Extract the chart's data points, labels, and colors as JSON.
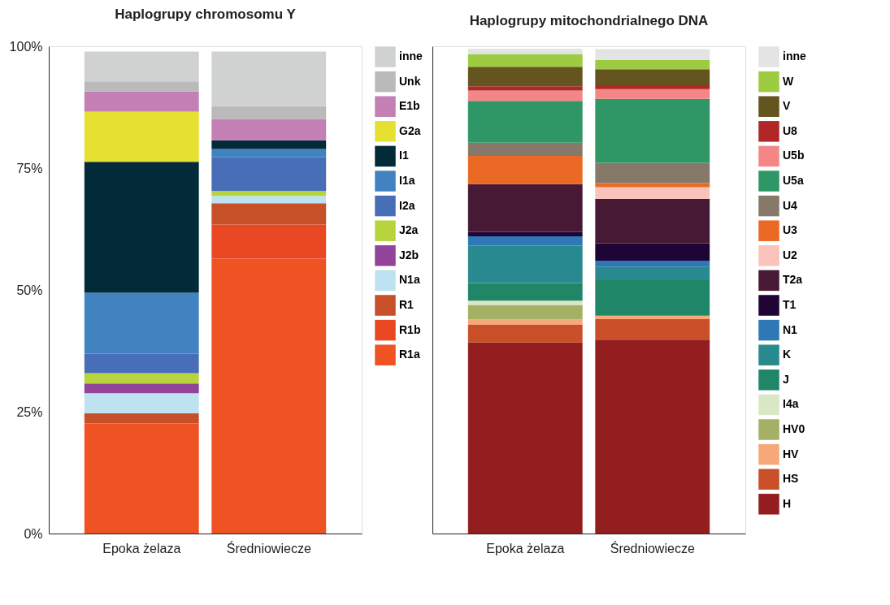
{
  "chart_data": [
    {
      "type": "bar",
      "title": "Haplogrupy chromosomu Y",
      "stacked": true,
      "legend": "right",
      "categories": [
        "Epoka żelaza",
        "Średniowiecze"
      ],
      "ylim": [
        0,
        100
      ],
      "yticks": [
        {
          "value": 0,
          "label": "0%"
        },
        {
          "value": 25,
          "label": "25%"
        },
        {
          "value": 50,
          "label": "50%"
        },
        {
          "value": 75,
          "label": "75%"
        },
        {
          "value": 100,
          "label": "100%"
        }
      ],
      "grid": false,
      "series": [
        {
          "name": "R1a",
          "color": "#ef5323",
          "values": [
            22.6,
            56.4
          ]
        },
        {
          "name": "R1b",
          "color": "#ea4723",
          "values": [
            0,
            7.0
          ]
        },
        {
          "name": "R1",
          "color": "#c85028",
          "values": [
            2.1,
            4.4
          ]
        },
        {
          "name": "N1a",
          "color": "#bee2f0",
          "values": [
            4.1,
            1.5
          ]
        },
        {
          "name": "J2b",
          "color": "#914499",
          "values": [
            2.0,
            0
          ]
        },
        {
          "name": "J2a",
          "color": "#b8d43c",
          "values": [
            2.1,
            1.0
          ]
        },
        {
          "name": "I2a",
          "color": "#476eb6",
          "values": [
            4.0,
            6.9
          ]
        },
        {
          "name": "I1a",
          "color": "#4183c1",
          "values": [
            12.5,
            1.7
          ]
        },
        {
          "name": "I1",
          "color": "#032a38",
          "values": [
            26.9,
            1.8
          ]
        },
        {
          "name": "G2a",
          "color": "#e6e030",
          "values": [
            10.3,
            0
          ]
        },
        {
          "name": "E1b",
          "color": "#c47fb5",
          "values": [
            4.1,
            4.4
          ]
        },
        {
          "name": "Unk",
          "color": "#b9bab9",
          "values": [
            2.1,
            2.6
          ]
        },
        {
          "name": "inne",
          "color": "#d0d2d1",
          "values": [
            6.1,
            11.2
          ]
        }
      ]
    },
    {
      "type": "bar",
      "title": "Haplogrupy mitochondrialnego DNA",
      "stacked": true,
      "legend": "right",
      "categories": [
        "Epoka żelaza",
        "Średniowiecze"
      ],
      "ylim": [
        0,
        100
      ],
      "tick_labels": "x",
      "grid": false,
      "series": [
        {
          "name": "H",
          "color": "#931e1f",
          "values": [
            39.2,
            39.8
          ]
        },
        {
          "name": "HS",
          "color": "#c84f28",
          "values": [
            3.7,
            4.2
          ]
        },
        {
          "name": "HV",
          "color": "#f6a878",
          "values": [
            1.0,
            0.7
          ]
        },
        {
          "name": "HV0",
          "color": "#a6b064",
          "values": [
            3.0,
            0
          ]
        },
        {
          "name": "I4a",
          "color": "#d9e8c4",
          "values": [
            0.9,
            0
          ]
        },
        {
          "name": "J",
          "color": "#1f8668",
          "values": [
            3.6,
            7.3
          ]
        },
        {
          "name": "K",
          "color": "#288a8e",
          "values": [
            7.7,
            2.7
          ]
        },
        {
          "name": "N1",
          "color": "#2e79b5",
          "values": [
            1.9,
            1.3
          ]
        },
        {
          "name": "T1",
          "color": "#1e0536",
          "values": [
            0.9,
            3.6
          ]
        },
        {
          "name": "T2a",
          "color": "#471934",
          "values": [
            9.8,
            9.1
          ]
        },
        {
          "name": "U2",
          "color": "#f9c3bb",
          "values": [
            0,
            2.4
          ]
        },
        {
          "name": "U3",
          "color": "#ea6924",
          "values": [
            5.8,
            0.8
          ]
        },
        {
          "name": "U4",
          "color": "#86796a",
          "values": [
            2.7,
            4.2
          ]
        },
        {
          "name": "U5a",
          "color": "#2f9665",
          "values": [
            8.6,
            13.1
          ]
        },
        {
          "name": "U5b",
          "color": "#f48786",
          "values": [
            2.1,
            2.0
          ]
        },
        {
          "name": "U8",
          "color": "#b12627",
          "values": [
            0.9,
            0.8
          ]
        },
        {
          "name": "V",
          "color": "#64541f",
          "values": [
            4.0,
            3.3
          ]
        },
        {
          "name": "W",
          "color": "#9dcb41",
          "values": [
            2.6,
            1.9
          ]
        },
        {
          "name": "inne",
          "color": "#e4e4e4",
          "values": [
            1.1,
            2.2
          ]
        }
      ]
    }
  ]
}
